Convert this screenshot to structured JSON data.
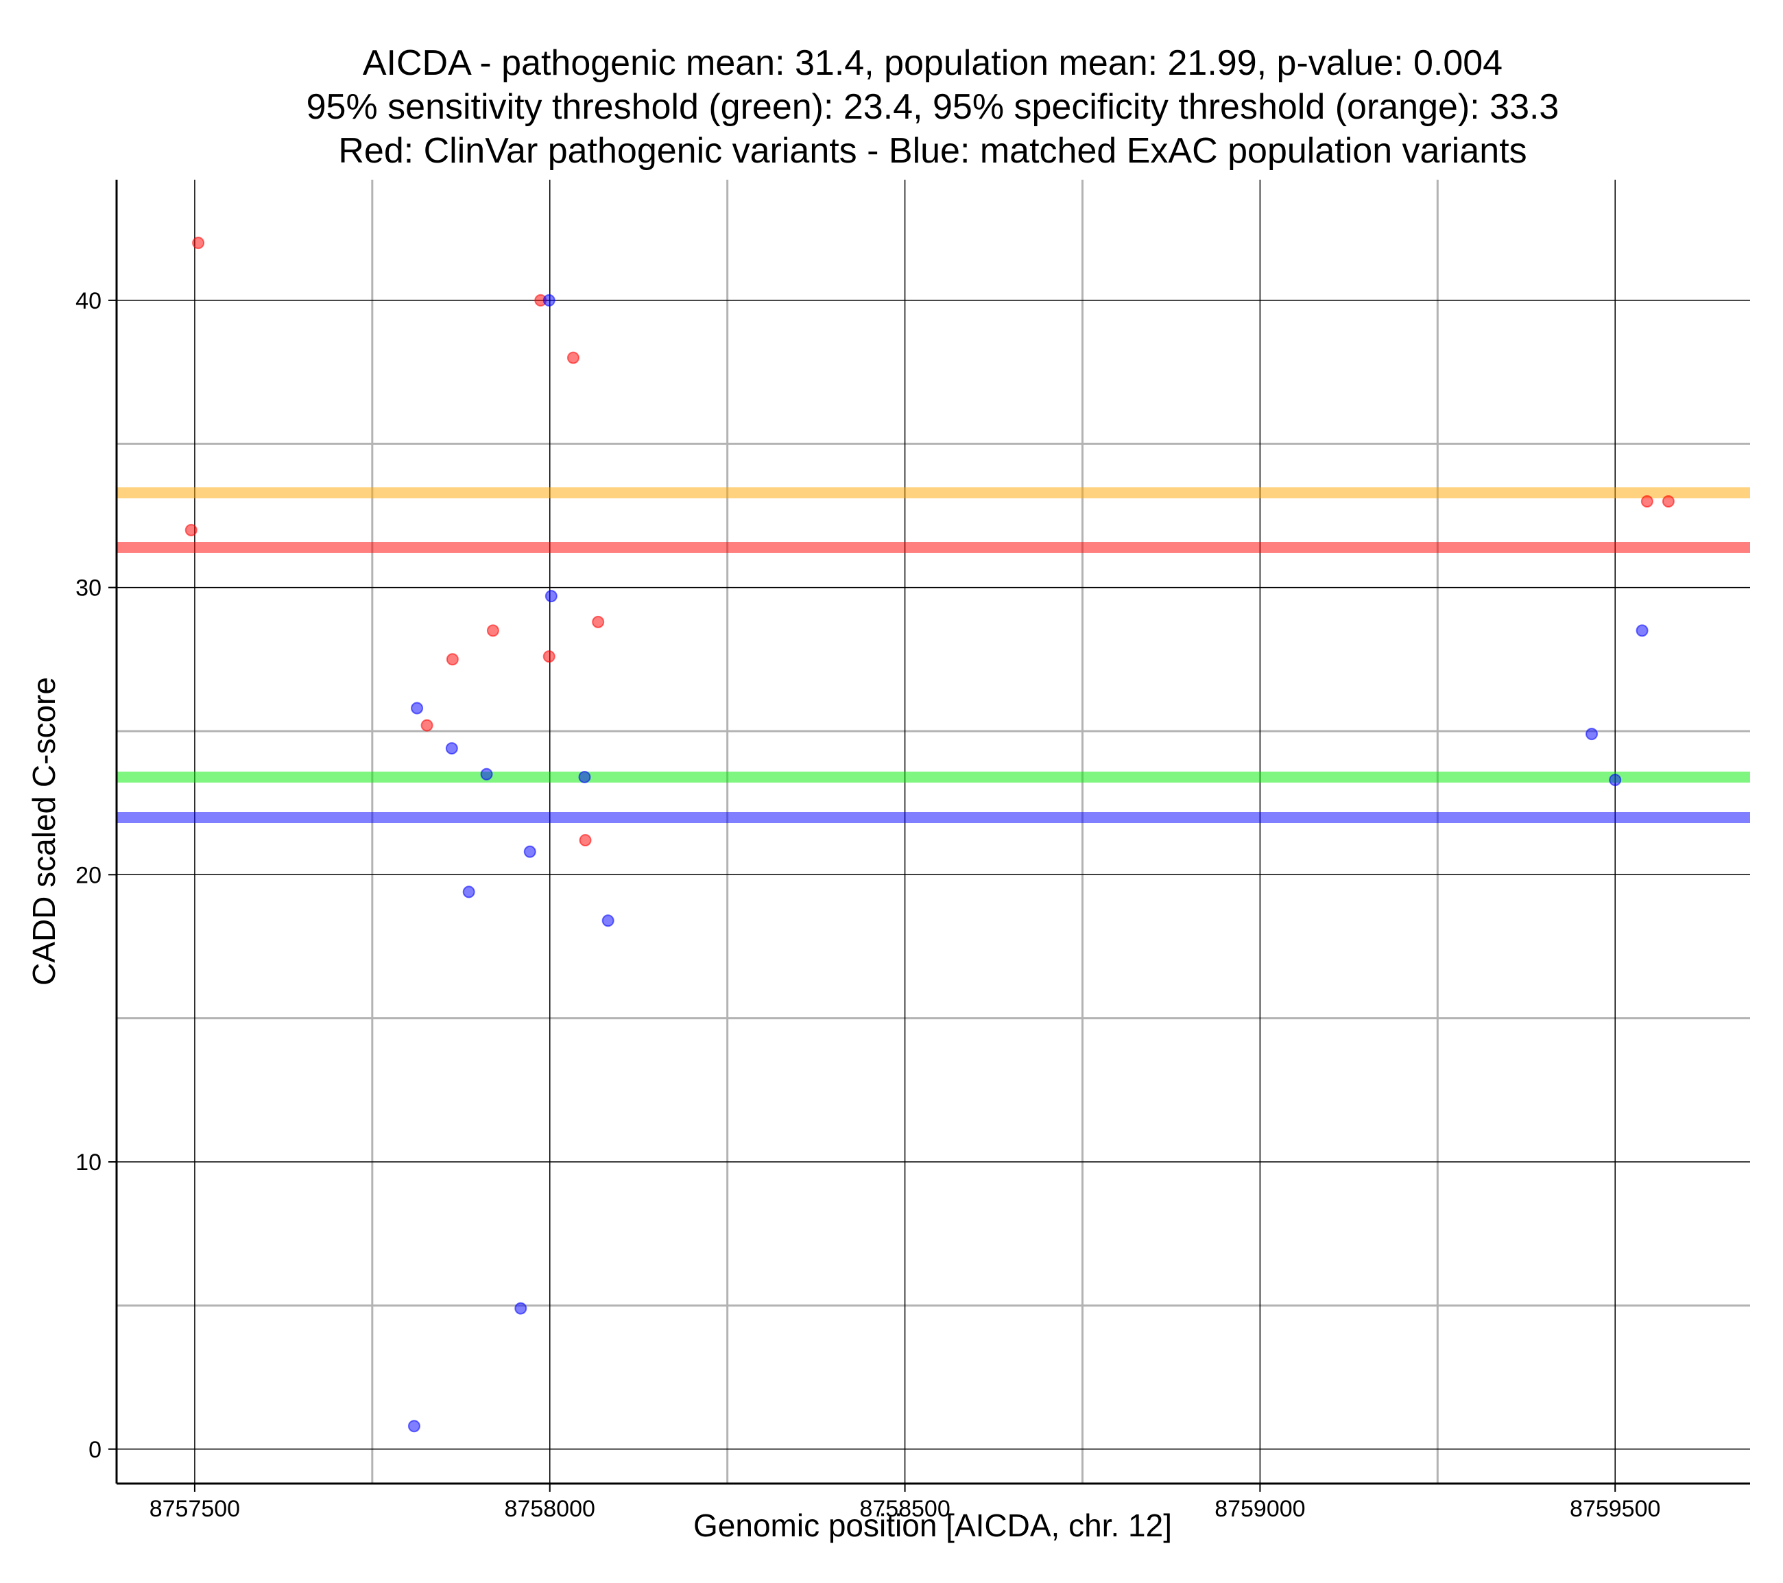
{
  "chart_data": {
    "type": "scatter",
    "title_lines": [
      "AICDA - pathogenic mean: 31.4, population mean: 21.99, p-value: 0.004",
      "95% sensitivity threshold (green): 23.4, 95% specificity threshold (orange): 33.3",
      "Red: ClinVar pathogenic variants - Blue: matched ExAC population variants"
    ],
    "xlabel": "Genomic position [AICDA, chr. 12]",
    "ylabel": "CADD scaled C-score",
    "xlim": [
      8757390,
      8759690
    ],
    "ylim": [
      -1.2,
      44.2
    ],
    "x_ticks": [
      8757500,
      8758000,
      8758500,
      8759000,
      8759500
    ],
    "x_tick_labels": [
      "8757500",
      "8758000",
      "8758500",
      "8759000",
      "8759500"
    ],
    "x_minor_grid": [
      8757750,
      8758250,
      8758750,
      8759250
    ],
    "y_ticks": [
      0,
      10,
      20,
      30,
      40
    ],
    "y_tick_labels": [
      "0",
      "10",
      "20",
      "30",
      "40"
    ],
    "y_minor_grid": [
      5,
      15,
      25,
      35
    ],
    "grid": true,
    "reference_lines": [
      {
        "name": "specificity threshold",
        "value": 33.3,
        "color": "#FFA500"
      },
      {
        "name": "pathogenic mean",
        "value": 31.4,
        "color": "#FF0000"
      },
      {
        "name": "sensitivity threshold",
        "value": 23.4,
        "color": "#00EE00"
      },
      {
        "name": "population mean",
        "value": 21.99,
        "color": "#0000FF"
      }
    ],
    "series": [
      {
        "name": "ClinVar pathogenic variants",
        "color": "#FF0000",
        "points": [
          {
            "x": 8757505,
            "y": 42.0
          },
          {
            "x": 8757495,
            "y": 32.0
          },
          {
            "x": 8757987,
            "y": 40.0
          },
          {
            "x": 8758033,
            "y": 38.0
          },
          {
            "x": 8757920,
            "y": 28.5
          },
          {
            "x": 8758068,
            "y": 28.8
          },
          {
            "x": 8757863,
            "y": 27.5
          },
          {
            "x": 8757999,
            "y": 27.6
          },
          {
            "x": 8757827,
            "y": 25.2
          },
          {
            "x": 8758050,
            "y": 21.2
          },
          {
            "x": 8759545,
            "y": 33.0
          },
          {
            "x": 8759575,
            "y": 33.0
          }
        ]
      },
      {
        "name": "matched ExAC population variants",
        "color": "#0000FF",
        "points": [
          {
            "x": 8757999,
            "y": 40.0
          },
          {
            "x": 8758002,
            "y": 29.7
          },
          {
            "x": 8757813,
            "y": 25.8
          },
          {
            "x": 8757862,
            "y": 24.4
          },
          {
            "x": 8757972,
            "y": 20.8
          },
          {
            "x": 8757886,
            "y": 19.4
          },
          {
            "x": 8758082,
            "y": 18.4
          },
          {
            "x": 8757959,
            "y": 4.9
          },
          {
            "x": 8757809,
            "y": 0.8
          },
          {
            "x": 8759538,
            "y": 28.5
          },
          {
            "x": 8759467,
            "y": 24.9
          },
          {
            "x": 8757911,
            "y": 23.5
          },
          {
            "x": 8758049,
            "y": 23.4
          },
          {
            "x": 8759500,
            "y": 23.3
          }
        ]
      }
    ]
  }
}
